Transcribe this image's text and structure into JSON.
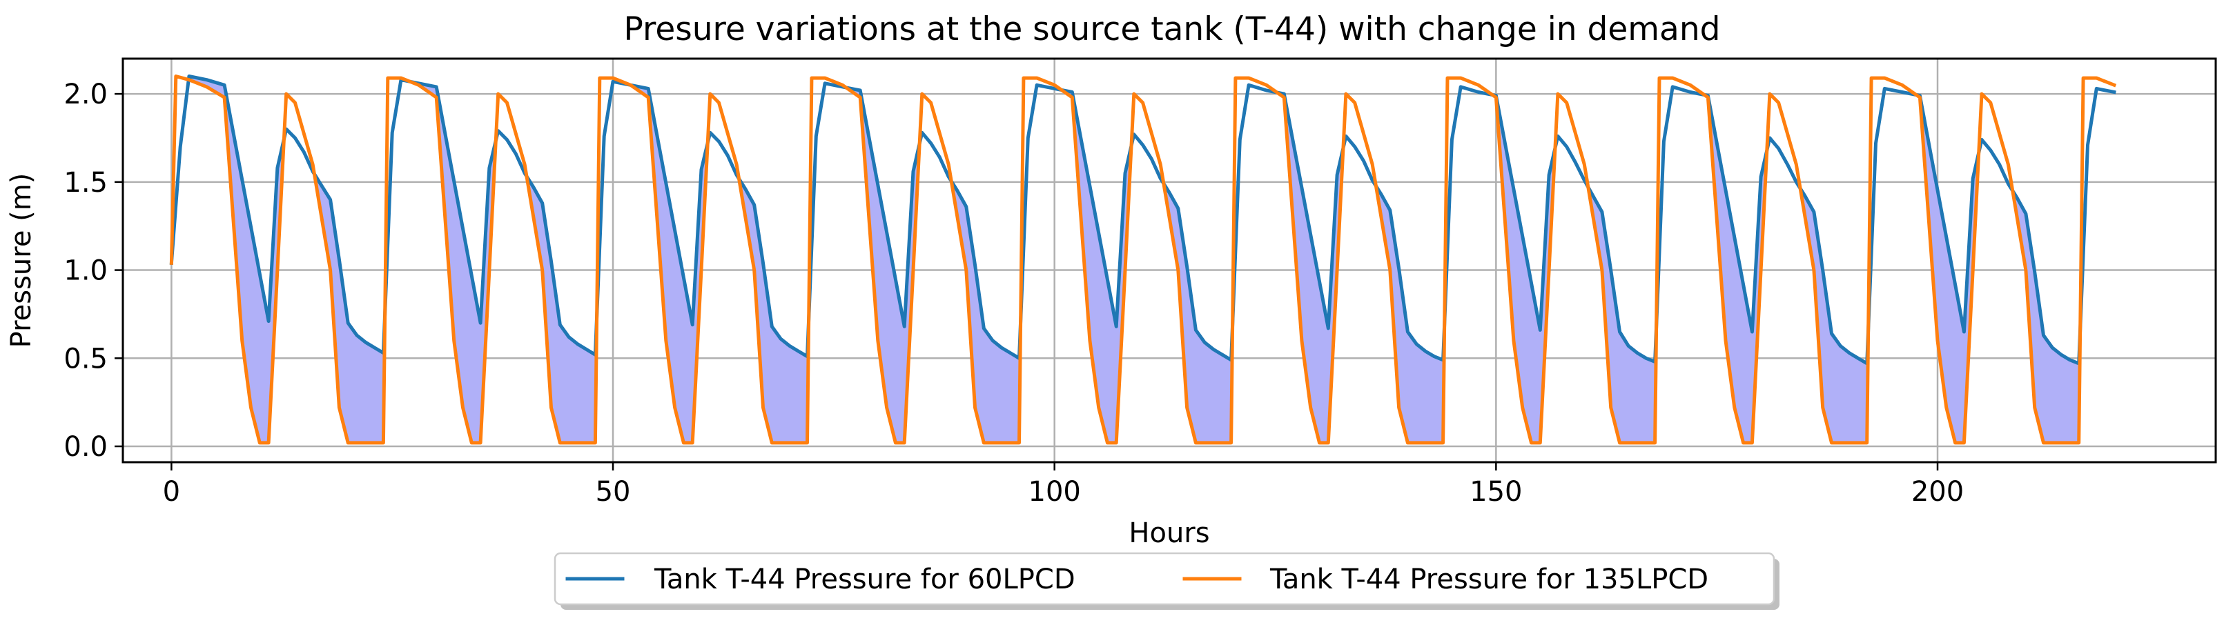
{
  "chart_data": {
    "type": "line",
    "title": "Presure variations at the source tank (T-44) with change in demand",
    "xlabel": "Hours",
    "ylabel": "Pressure (m)",
    "xlim": [
      -5.5,
      231.5
    ],
    "ylim": [
      -0.09,
      2.2
    ],
    "xticks": [
      0,
      50,
      100,
      150,
      200
    ],
    "xtick_labels": [
      "0",
      "50",
      "100",
      "150",
      "200"
    ],
    "yticks": [
      0.0,
      0.5,
      1.0,
      1.5,
      2.0
    ],
    "ytick_labels": [
      "0.0",
      "0.5",
      "1.0",
      "1.5",
      "2.0"
    ],
    "grid": true,
    "legend": {
      "placement": "bottom-center-outside",
      "columns": 2
    },
    "fill_between": {
      "color": "#b0b0f8",
      "where": "135LPCD below 60LPCD"
    },
    "cycle_hours": 24,
    "cycle_count": 9,
    "series": [
      {
        "name": "Tank T-44 Pressure for 60LPCD",
        "color": "#1f77b4",
        "start": {
          "x": 0,
          "y": 1.04
        },
        "cycle_x": [
          1,
          2,
          4,
          6,
          11,
          12,
          13,
          14,
          15,
          16,
          17,
          18,
          19,
          20,
          21,
          22,
          23,
          24
        ],
        "cycles_y": [
          [
            1.7,
            2.1,
            2.08,
            2.05,
            0.71,
            1.58,
            1.8,
            1.75,
            1.67,
            1.56,
            1.48,
            1.4,
            1.06,
            0.7,
            0.63,
            0.59,
            0.56,
            0.53
          ],
          [
            1.78,
            2.08,
            2.06,
            2.04,
            0.7,
            1.58,
            1.79,
            1.74,
            1.66,
            1.55,
            1.47,
            1.38,
            1.05,
            0.69,
            0.62,
            0.58,
            0.55,
            0.52
          ],
          [
            1.76,
            2.07,
            2.05,
            2.03,
            0.69,
            1.57,
            1.78,
            1.73,
            1.65,
            1.54,
            1.46,
            1.37,
            1.04,
            0.68,
            0.61,
            0.57,
            0.54,
            0.51
          ],
          [
            1.76,
            2.06,
            2.04,
            2.02,
            0.68,
            1.56,
            1.78,
            1.72,
            1.64,
            1.53,
            1.45,
            1.36,
            1.03,
            0.67,
            0.6,
            0.56,
            0.53,
            0.5
          ],
          [
            1.75,
            2.05,
            2.03,
            2.01,
            0.68,
            1.55,
            1.77,
            1.71,
            1.63,
            1.52,
            1.44,
            1.35,
            1.02,
            0.66,
            0.59,
            0.55,
            0.52,
            0.49
          ],
          [
            1.74,
            2.05,
            2.02,
            2.0,
            0.67,
            1.54,
            1.76,
            1.7,
            1.62,
            1.51,
            1.43,
            1.34,
            1.01,
            0.65,
            0.58,
            0.54,
            0.51,
            0.49
          ],
          [
            1.74,
            2.04,
            2.01,
            1.99,
            0.66,
            1.54,
            1.76,
            1.7,
            1.61,
            1.51,
            1.42,
            1.33,
            1.0,
            0.65,
            0.57,
            0.53,
            0.5,
            0.48
          ],
          [
            1.73,
            2.04,
            2.01,
            1.99,
            0.65,
            1.53,
            1.75,
            1.69,
            1.6,
            1.5,
            1.42,
            1.33,
            1.0,
            0.64,
            0.57,
            0.53,
            0.5,
            0.47
          ],
          [
            1.72,
            2.03,
            2.01,
            1.99,
            0.65,
            1.52,
            1.74,
            1.68,
            1.6,
            1.49,
            1.41,
            1.32,
            0.99,
            0.63,
            0.56,
            0.52,
            0.49,
            0.47
          ]
        ],
        "end_x": [
          217,
          218,
          219,
          220
        ],
        "end_y": [
          1.71,
          2.03,
          2.02,
          2.01
        ]
      },
      {
        "name": "Tank T-44 Pressure for 135LPCD",
        "color": "#ff7f0e",
        "start": {
          "x": 0,
          "y": 1.04
        },
        "cycle_x": [
          0.5,
          2,
          4,
          6,
          8,
          9,
          10,
          11,
          12,
          13,
          14,
          16,
          18,
          19,
          20,
          21,
          22,
          23,
          24
        ],
        "cycles_y": [
          [
            2.1,
            2.08,
            2.04,
            1.98,
            0.6,
            0.22,
            0.02,
            0.02,
            1.0,
            2.0,
            1.95,
            1.6,
            1.0,
            0.22,
            0.02,
            0.02,
            0.02,
            0.02,
            0.02
          ],
          [
            2.09,
            2.09,
            2.05,
            1.98,
            0.6,
            0.22,
            0.02,
            0.02,
            1.0,
            2.0,
            1.95,
            1.6,
            1.0,
            0.22,
            0.02,
            0.02,
            0.02,
            0.02,
            0.02
          ],
          [
            2.09,
            2.09,
            2.05,
            1.98,
            0.6,
            0.22,
            0.02,
            0.02,
            1.0,
            2.0,
            1.95,
            1.6,
            1.0,
            0.22,
            0.02,
            0.02,
            0.02,
            0.02,
            0.02
          ],
          [
            2.09,
            2.09,
            2.05,
            1.98,
            0.6,
            0.22,
            0.02,
            0.02,
            1.0,
            2.0,
            1.95,
            1.6,
            1.0,
            0.22,
            0.02,
            0.02,
            0.02,
            0.02,
            0.02
          ],
          [
            2.09,
            2.09,
            2.05,
            1.98,
            0.6,
            0.22,
            0.02,
            0.02,
            1.0,
            2.0,
            1.95,
            1.6,
            1.0,
            0.22,
            0.02,
            0.02,
            0.02,
            0.02,
            0.02
          ],
          [
            2.09,
            2.09,
            2.05,
            1.98,
            0.6,
            0.22,
            0.02,
            0.02,
            1.0,
            2.0,
            1.95,
            1.6,
            1.0,
            0.22,
            0.02,
            0.02,
            0.02,
            0.02,
            0.02
          ],
          [
            2.09,
            2.09,
            2.05,
            1.98,
            0.6,
            0.22,
            0.02,
            0.02,
            1.0,
            2.0,
            1.95,
            1.6,
            1.0,
            0.22,
            0.02,
            0.02,
            0.02,
            0.02,
            0.02
          ],
          [
            2.09,
            2.09,
            2.05,
            1.98,
            0.6,
            0.22,
            0.02,
            0.02,
            1.0,
            2.0,
            1.95,
            1.6,
            1.0,
            0.22,
            0.02,
            0.02,
            0.02,
            0.02,
            0.02
          ],
          [
            2.09,
            2.09,
            2.05,
            1.98,
            0.6,
            0.22,
            0.02,
            0.02,
            1.0,
            2.0,
            1.95,
            1.6,
            1.0,
            0.22,
            0.02,
            0.02,
            0.02,
            0.02,
            0.02
          ]
        ],
        "end_x": [
          216.5,
          218,
          220
        ],
        "end_y": [
          2.09,
          2.09,
          2.05
        ]
      }
    ]
  }
}
